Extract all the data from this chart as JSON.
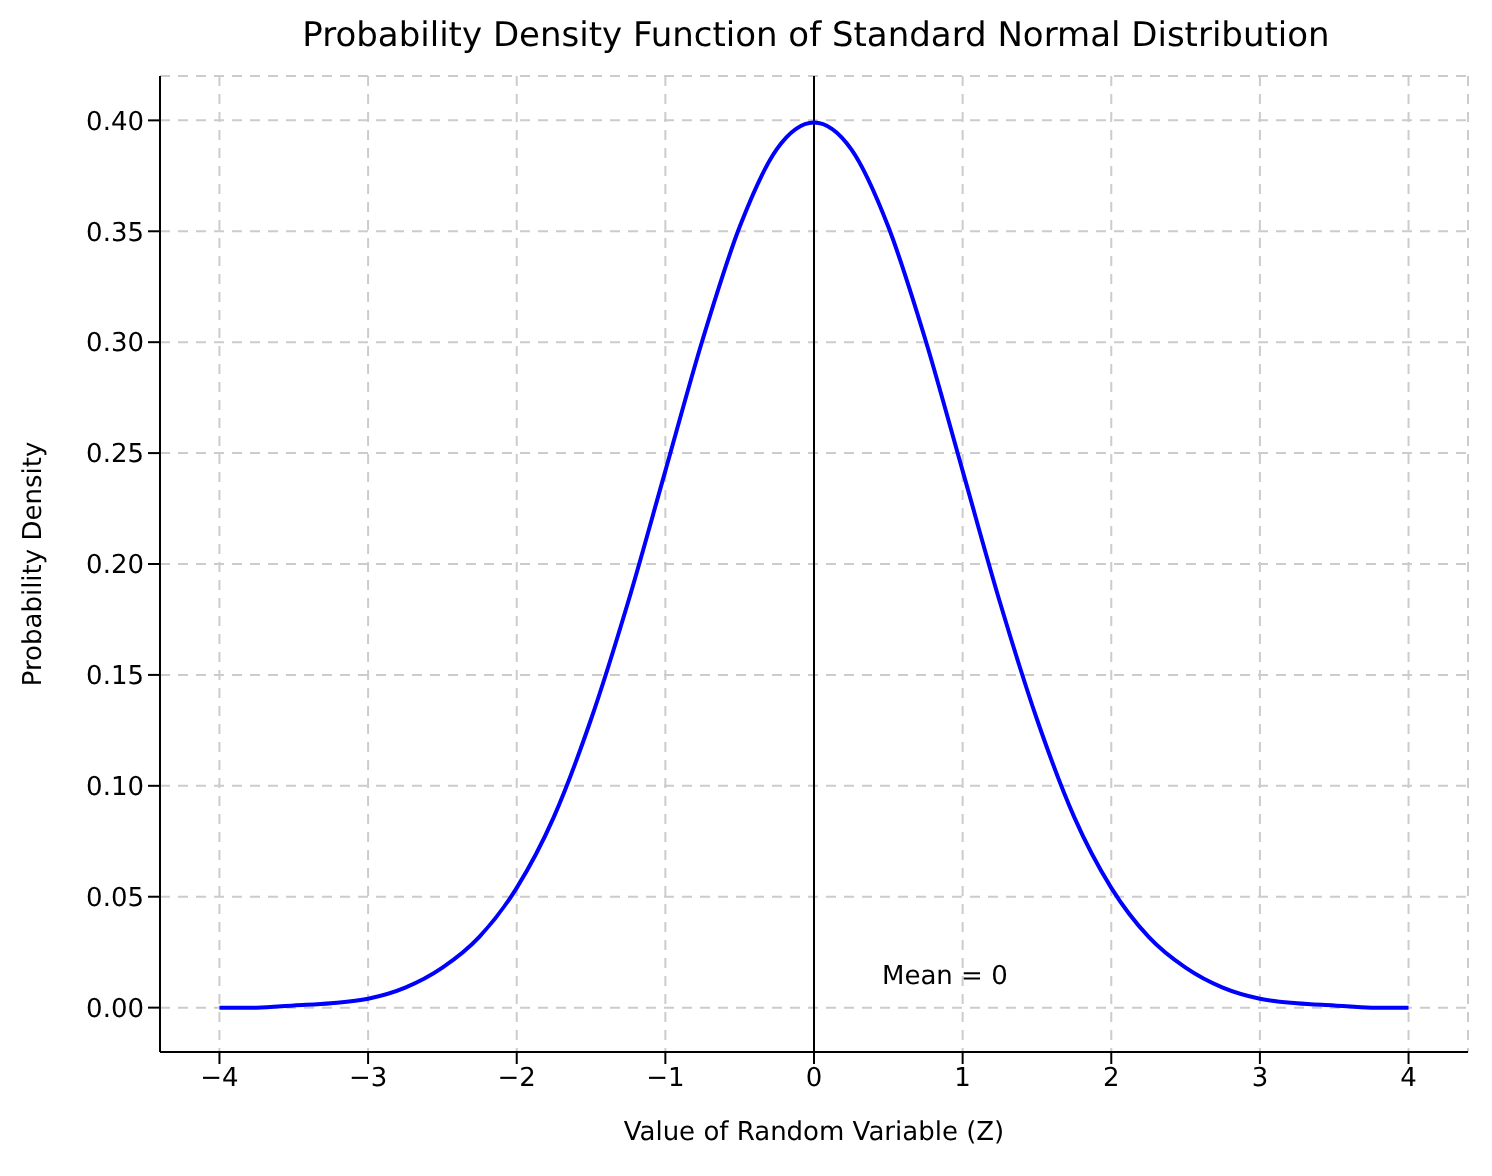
{
  "chart_data": {
    "type": "line",
    "title": "Probability Density Function of Standard Normal Distribution",
    "xlabel": "Value of Random Variable (Z)",
    "ylabel": "Probability Density",
    "x": [
      -4,
      -3.75,
      -3.5,
      -3.25,
      -3,
      -2.75,
      -2.5,
      -2.25,
      -2,
      -1.75,
      -1.5,
      -1.25,
      -1,
      -0.75,
      -0.5,
      -0.25,
      0,
      0.25,
      0.5,
      0.75,
      1,
      1.25,
      1.5,
      1.75,
      2,
      2.25,
      2.5,
      2.75,
      3,
      3.25,
      3.5,
      3.75,
      4
    ],
    "series": [
      {
        "color": "#0000ff",
        "values": [
          0.0,
          0.0,
          0.001,
          0.002,
          0.004,
          0.009,
          0.018,
          0.032,
          0.054,
          0.086,
          0.13,
          0.183,
          0.242,
          0.301,
          0.352,
          0.387,
          0.399,
          0.387,
          0.352,
          0.301,
          0.242,
          0.183,
          0.13,
          0.086,
          0.054,
          0.032,
          0.018,
          0.009,
          0.004,
          0.002,
          0.001,
          0.0,
          0.0
        ]
      }
    ],
    "xlim": [
      -4.4,
      4.4
    ],
    "ylim": [
      -0.02,
      0.42
    ],
    "xticks": [
      {
        "value": -4,
        "label": "−4"
      },
      {
        "value": -3,
        "label": "−3"
      },
      {
        "value": -2,
        "label": "−2"
      },
      {
        "value": -1,
        "label": "−1"
      },
      0,
      1,
      2,
      3,
      4
    ],
    "yticks": [
      {
        "value": 0,
        "label": "0.00"
      },
      {
        "value": 0.05,
        "label": "0.05"
      },
      {
        "value": 0.1,
        "label": "0.10"
      },
      {
        "value": 0.15,
        "label": "0.15"
      },
      {
        "value": 0.2,
        "label": "0.20"
      },
      {
        "value": 0.25,
        "label": "0.25"
      },
      {
        "value": 0.3,
        "label": "0.30"
      },
      {
        "value": 0.35,
        "label": "0.35"
      },
      {
        "value": 0.4,
        "label": "0.40"
      }
    ],
    "ref_lines": [
      {
        "axis": "x",
        "value": 0,
        "label": "Mean = 0",
        "color": "#000000"
      }
    ],
    "grid": true,
    "marker": "none",
    "line_style": "solid",
    "legend": false
  }
}
